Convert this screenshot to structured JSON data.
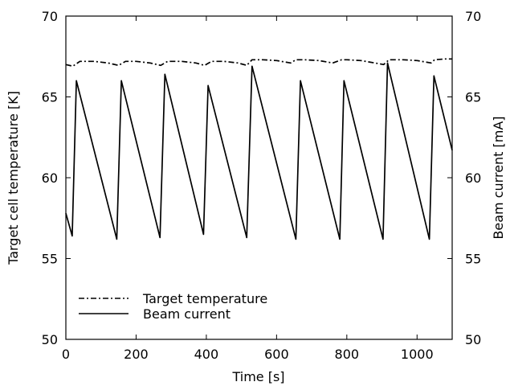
{
  "chart_data": {
    "type": "line",
    "xlabel": "Time [s]",
    "ylabel": "Target cell temperature [K]",
    "ylabel_right": "Beam current [mA]",
    "xlim": [
      0,
      1100
    ],
    "ylim": [
      50,
      70
    ],
    "ylim_right": [
      50,
      70
    ],
    "x_ticks": [
      "0",
      "200",
      "400",
      "600",
      "800",
      "1000"
    ],
    "x_tick_values": [
      0,
      200,
      400,
      600,
      800,
      1000
    ],
    "y_ticks": [
      "50",
      "55",
      "60",
      "65",
      "70"
    ],
    "y_tick_values": [
      50,
      55,
      60,
      65,
      70
    ],
    "y_ticks_right": [
      "50",
      "55",
      "60",
      "65",
      "70"
    ],
    "grid": false,
    "legend_position": "bottom-left",
    "series": [
      {
        "name": "Target temperature",
        "axis": "left",
        "style": "dash-dot",
        "x": [
          0,
          20,
          40,
          80,
          120,
          150,
          170,
          200,
          240,
          270,
          290,
          330,
          370,
          395,
          415,
          450,
          490,
          515,
          530,
          560,
          600,
          640,
          655,
          680,
          720,
          760,
          785,
          800,
          840,
          880,
          905,
          920,
          960,
          1000,
          1040,
          1050,
          1080,
          1100
        ],
        "y": [
          67.0,
          66.9,
          67.2,
          67.2,
          67.1,
          66.95,
          67.2,
          67.2,
          67.1,
          66.95,
          67.2,
          67.2,
          67.1,
          66.95,
          67.2,
          67.2,
          67.1,
          66.95,
          67.3,
          67.3,
          67.25,
          67.1,
          67.3,
          67.3,
          67.25,
          67.1,
          67.3,
          67.3,
          67.25,
          67.1,
          67.0,
          67.3,
          67.3,
          67.25,
          67.1,
          67.3,
          67.35,
          67.35
        ]
      },
      {
        "name": "Beam current",
        "axis": "right",
        "style": "solid",
        "x": [
          0,
          18,
          30,
          145,
          158,
          268,
          282,
          392,
          405,
          515,
          530,
          655,
          668,
          780,
          792,
          903,
          916,
          1035,
          1048,
          1100
        ],
        "y": [
          57.8,
          56.4,
          66.0,
          56.2,
          66.0,
          56.3,
          66.4,
          56.5,
          65.7,
          56.3,
          66.9,
          56.2,
          66.0,
          56.2,
          66.0,
          56.2,
          67.1,
          56.2,
          66.3,
          61.7
        ]
      }
    ]
  }
}
